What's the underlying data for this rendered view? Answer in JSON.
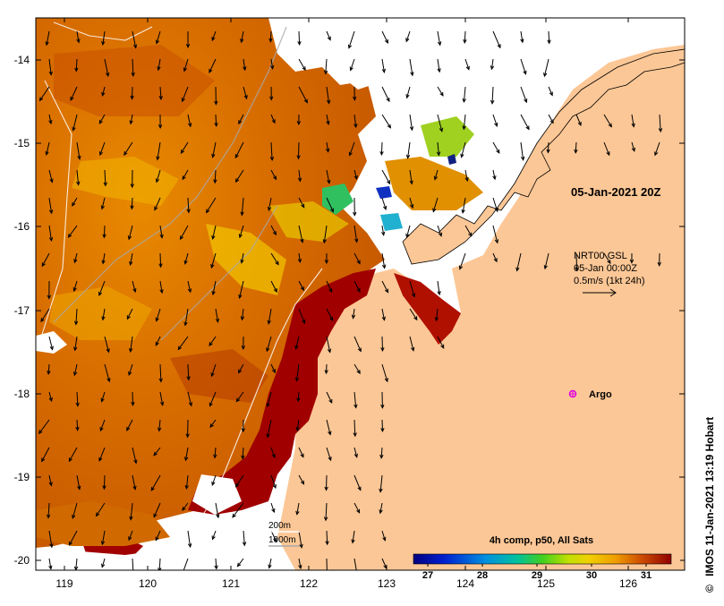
{
  "map": {
    "x_ticks": [
      "119",
      "120",
      "121",
      "122",
      "123",
      "124",
      "125",
      "126"
    ],
    "y_ticks": [
      "-14",
      "-15",
      "-16",
      "-17",
      "-18",
      "-19",
      "-20"
    ],
    "timestamp": "05-Jan-2021 20Z",
    "current_source": "NRT00 GSL",
    "current_date": "05-Jan 00:00Z",
    "current_scale": "0.5m/s (1kt 24h)",
    "argo_label": "Argo",
    "contour_200": "200m",
    "contour_1000": "1000m",
    "credit": "IMOS 11-Jan-2021 13:19 Hobart",
    "copyright_symbol": "©"
  },
  "colorbar": {
    "title": "4h comp, p50, All Sats",
    "ticks": [
      "27",
      "28",
      "29",
      "30",
      "31"
    ]
  },
  "colors": {
    "land": "#fcc796",
    "sst_warm": "#e07800",
    "sst_hot": "#a00000",
    "sst_yellow": "#f0d000",
    "argo": "#e000e0"
  }
}
